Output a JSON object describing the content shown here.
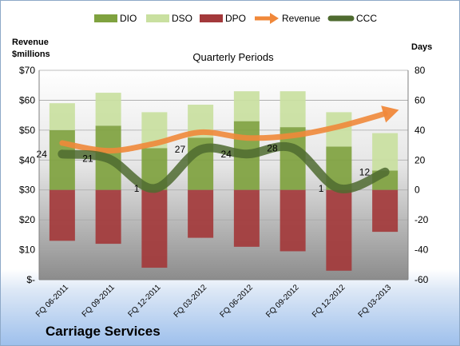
{
  "company": "Carriage Services",
  "colors": {
    "DIO": "#7fa23f",
    "DSO": "#c9e0a0",
    "DPO": "#a3393b",
    "Revenue": "#f0883a",
    "CCC": "#4f6b30"
  },
  "chart_data": {
    "type": "bar",
    "title": "Quarterly Periods",
    "ylabel_left": "Revenue $millions",
    "ylabel_right": "Days",
    "categories": [
      "FQ 06-2011",
      "FQ 09-2011",
      "FQ 12-2011",
      "FQ 03-2012",
      "FQ 06-2012",
      "FQ 09-2012",
      "FQ 12-2012",
      "FQ 03-2013"
    ],
    "ylim_left": [
      0,
      70
    ],
    "yticks_left": [
      "$-",
      "$10",
      "$20",
      "$30",
      "$40",
      "$50",
      "$60",
      "$70"
    ],
    "ylim_right": [
      -60,
      80
    ],
    "yticks_right": [
      "-60",
      "-40",
      "-20",
      "0",
      "20",
      "40",
      "60",
      "80"
    ],
    "legend_position": "top",
    "legend": [
      "DIO",
      "DSO",
      "DPO",
      "Revenue",
      "CCC"
    ],
    "series": [
      {
        "name": "DIO",
        "type": "bar",
        "axis": "right",
        "values": [
          40,
          43,
          28,
          35,
          46,
          42,
          29,
          13
        ]
      },
      {
        "name": "DSO",
        "type": "bar",
        "axis": "right",
        "values": [
          18,
          22,
          24,
          22,
          20,
          24,
          23,
          25
        ]
      },
      {
        "name": "DPO",
        "type": "bar",
        "axis": "right",
        "values": [
          -34,
          -36,
          -52,
          -32,
          -38,
          -41,
          -54,
          -28
        ]
      },
      {
        "name": "Revenue",
        "type": "line",
        "axis": "left",
        "values": [
          45.7,
          43.1,
          45.5,
          49.3,
          47.4,
          48.2,
          51.2,
          55.5
        ]
      },
      {
        "name": "CCC",
        "type": "line",
        "axis": "right",
        "values": [
          24,
          21,
          1,
          27,
          24,
          28,
          1,
          12
        ]
      }
    ],
    "data_labels": [
      "24",
      "21",
      "1",
      "27",
      "24",
      "28",
      "1",
      "12"
    ]
  }
}
